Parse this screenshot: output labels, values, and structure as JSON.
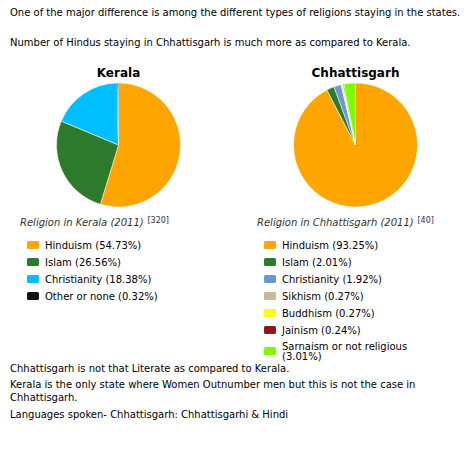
{
  "title": "One of the major difference is among the different types of religions staying in the states.",
  "subtitle": "Number of Hindus staying in Chhattisgarh is much more as compared to Kerala.",
  "annotations": [
    "Chhattisgarh is not that Literate as compared to Kerala.",
    "Kerala is the only state where Women Outnumber men but this is not the case in Chhattisgarh.",
    "Languages spoken- Chhattisgarh: Chhattisgarhi & Hindi"
  ],
  "chart_data": [
    {
      "type": "pie",
      "title": "Kerala",
      "subtitle": "Religion in Kerala (2011)",
      "annotations": [
        "[320]"
      ],
      "categories": [
        "Hinduism (54.73%)",
        "Islam (26.56%)",
        "Christianity (18.38%)",
        "Other or none (0.32%)"
      ],
      "values": [
        54.73,
        26.56,
        18.38,
        0.32
      ],
      "colors": [
        "#FFA500",
        "#2d7a2d",
        "#00BFFF",
        "#111111"
      ],
      "legend": "bottom"
    },
    {
      "type": "pie",
      "title": "Chhattisgarh",
      "subtitle": "Religion in Chhattisgarh (2011)",
      "annotations": [
        "[40]"
      ],
      "categories": [
        "Hinduism (93.25%)",
        "Islam (2.01%)",
        "Christianity (1.92%)",
        "Sikhism (0.27%)",
        "Buddhism (0.27%)",
        "Jainism (0.24%)",
        "Sarnaism or not religious\n(3.01%)"
      ],
      "values": [
        93.25,
        2.01,
        1.92,
        0.27,
        0.27,
        0.24,
        3.01
      ],
      "colors": [
        "#FFA500",
        "#2d7a2d",
        "#6699CC",
        "#C8B89A",
        "#FFFF00",
        "#8B1A1A",
        "#7CFC00"
      ],
      "legend": "bottom"
    }
  ]
}
